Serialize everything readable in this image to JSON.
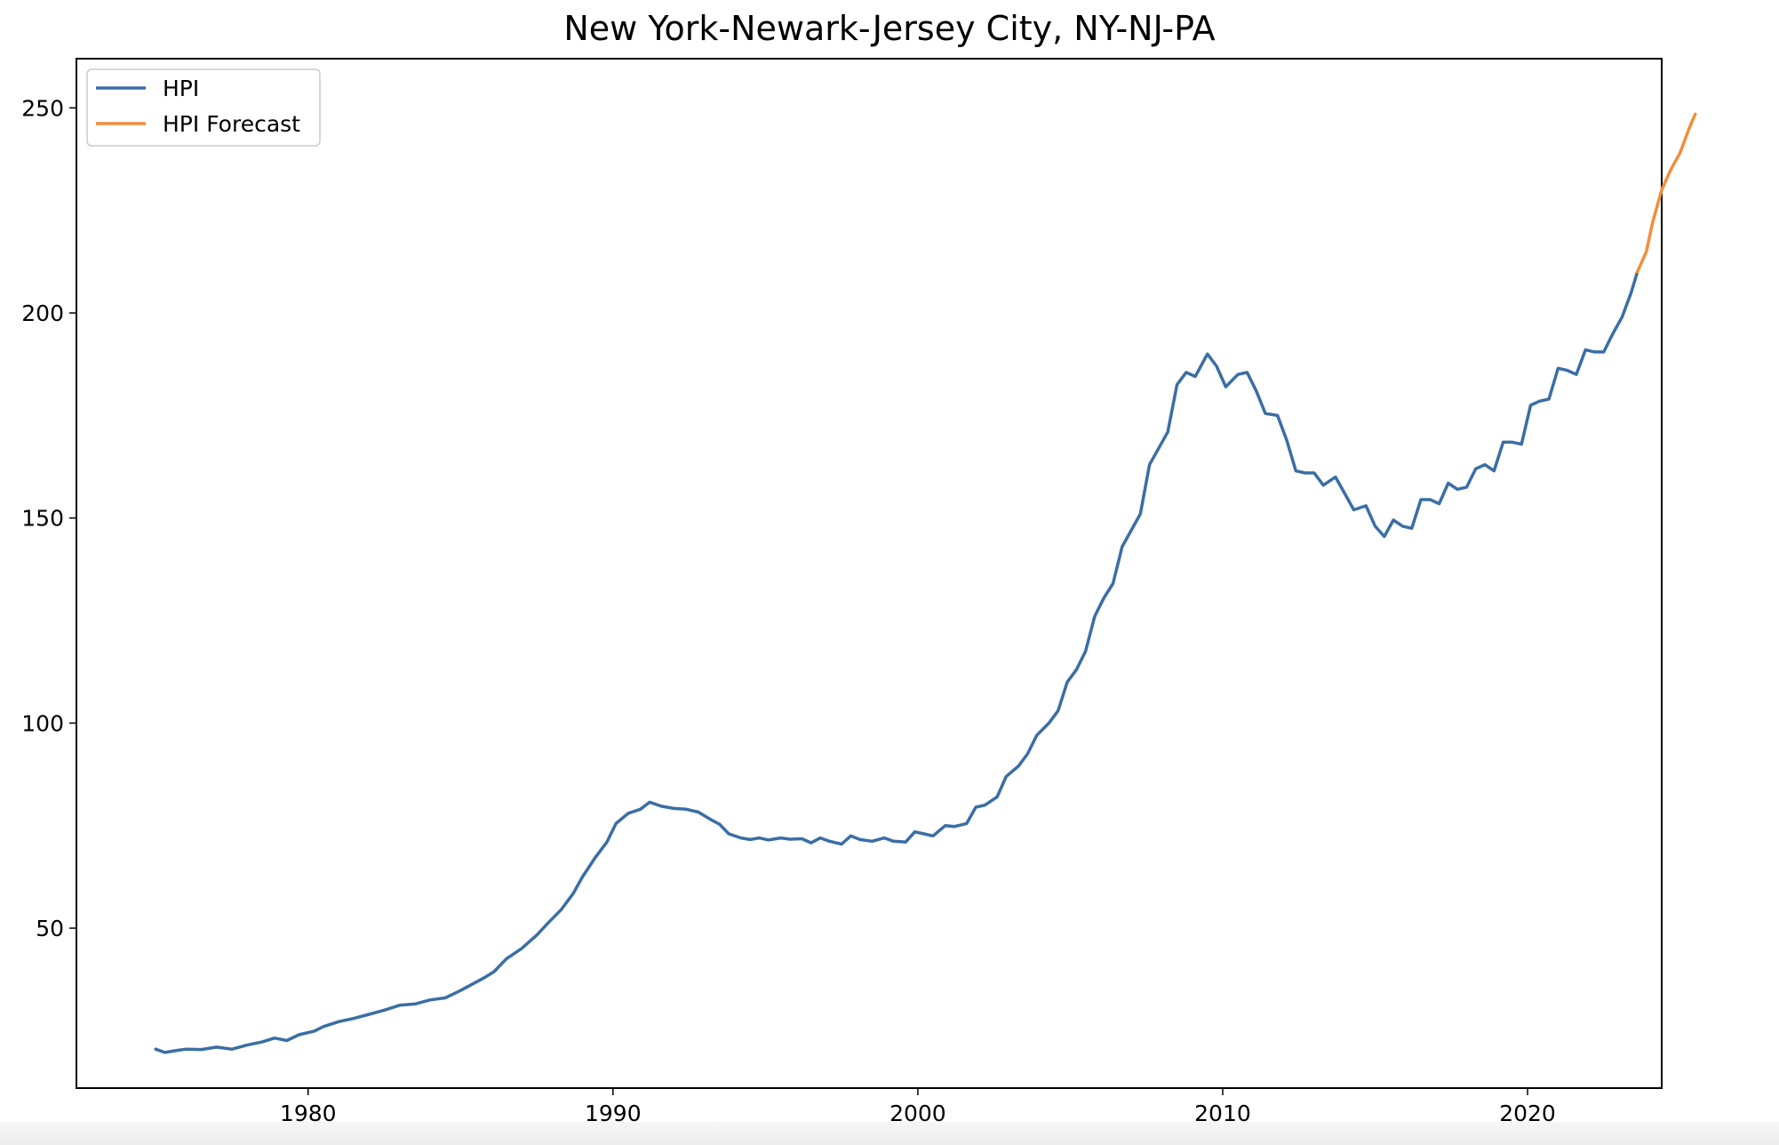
{
  "chart_data": {
    "type": "line",
    "title": "New York-Newark-Jersey City, NY-NJ-PA",
    "xlabel": "",
    "ylabel": "",
    "xlim": [
      1972.4,
      2024.4
    ],
    "ylim": [
      11,
      262
    ],
    "x_ticks": [
      1980,
      1990,
      2000,
      2010,
      2020
    ],
    "y_ticks": [
      50,
      100,
      150,
      200,
      250
    ],
    "grid": false,
    "legend_position": "top-left",
    "series": [
      {
        "name": "HPI",
        "color": "#3a6ea5",
        "points": [
          [
            1975.0,
            20.5
          ],
          [
            1975.3,
            19.7
          ],
          [
            1975.7,
            20.2
          ],
          [
            1976.0,
            20.5
          ],
          [
            1976.5,
            20.4
          ],
          [
            1977.0,
            21.0
          ],
          [
            1977.5,
            20.5
          ],
          [
            1978.0,
            21.5
          ],
          [
            1978.5,
            22.3
          ],
          [
            1978.9,
            23.2
          ],
          [
            1979.3,
            22.6
          ],
          [
            1979.7,
            24.0
          ],
          [
            1980.2,
            24.9
          ],
          [
            1980.5,
            26.0
          ],
          [
            1981.0,
            27.2
          ],
          [
            1981.5,
            28.0
          ],
          [
            1982.0,
            29.0
          ],
          [
            1982.5,
            30.0
          ],
          [
            1983.0,
            31.2
          ],
          [
            1983.5,
            31.5
          ],
          [
            1984.0,
            32.5
          ],
          [
            1984.5,
            33.0
          ],
          [
            1985.0,
            34.8
          ],
          [
            1985.4,
            36.4
          ],
          [
            1985.8,
            38.0
          ],
          [
            1986.1,
            39.4
          ],
          [
            1986.5,
            42.5
          ],
          [
            1987.0,
            45.0
          ],
          [
            1987.5,
            48.3
          ],
          [
            1987.9,
            51.5
          ],
          [
            1988.3,
            54.5
          ],
          [
            1988.7,
            58.5
          ],
          [
            1989.0,
            62.5
          ],
          [
            1989.4,
            67.0
          ],
          [
            1989.8,
            71.0
          ],
          [
            1990.1,
            75.5
          ],
          [
            1990.5,
            78.0
          ],
          [
            1990.9,
            79.0
          ],
          [
            1991.2,
            80.7
          ],
          [
            1991.6,
            79.7
          ],
          [
            1992.0,
            79.2
          ],
          [
            1992.4,
            79.0
          ],
          [
            1992.8,
            78.3
          ],
          [
            1993.2,
            76.5
          ],
          [
            1993.5,
            75.3
          ],
          [
            1993.8,
            73.0
          ],
          [
            1994.2,
            72.0
          ],
          [
            1994.5,
            71.6
          ],
          [
            1994.8,
            72.0
          ],
          [
            1995.1,
            71.5
          ],
          [
            1995.5,
            72.0
          ],
          [
            1995.8,
            71.7
          ],
          [
            1996.2,
            71.8
          ],
          [
            1996.5,
            70.8
          ],
          [
            1996.8,
            72.0
          ],
          [
            1997.1,
            71.2
          ],
          [
            1997.5,
            70.5
          ],
          [
            1997.8,
            72.5
          ],
          [
            1998.1,
            71.6
          ],
          [
            1998.5,
            71.2
          ],
          [
            1998.9,
            72.0
          ],
          [
            1999.2,
            71.2
          ],
          [
            1999.6,
            71.0
          ],
          [
            1999.9,
            73.5
          ],
          [
            2000.2,
            73.0
          ],
          [
            2000.5,
            72.5
          ],
          [
            2000.9,
            75.0
          ],
          [
            2001.2,
            74.8
          ],
          [
            2001.6,
            75.5
          ],
          [
            2001.9,
            79.5
          ],
          [
            2002.2,
            80.0
          ],
          [
            2002.6,
            82.0
          ],
          [
            2002.9,
            87.0
          ],
          [
            2003.3,
            89.5
          ],
          [
            2003.6,
            92.5
          ],
          [
            2003.9,
            97.0
          ],
          [
            2004.3,
            100.0
          ],
          [
            2004.6,
            103.0
          ],
          [
            2004.9,
            110.0
          ],
          [
            2005.2,
            113.0
          ],
          [
            2005.5,
            117.5
          ],
          [
            2005.8,
            126.0
          ],
          [
            2006.1,
            130.5
          ],
          [
            2006.4,
            134.0
          ],
          [
            2006.7,
            143.0
          ],
          [
            2007.0,
            147.0
          ],
          [
            2007.3,
            151.0
          ],
          [
            2007.6,
            163.0
          ],
          [
            2007.9,
            167.0
          ],
          [
            2008.2,
            171.0
          ],
          [
            2008.5,
            182.5
          ],
          [
            2008.8,
            185.5
          ],
          [
            2009.1,
            184.5
          ],
          [
            2009.5,
            190.0
          ],
          [
            2009.8,
            187.0
          ],
          [
            2010.1,
            182.0
          ],
          [
            2010.5,
            185.0
          ],
          [
            2010.8,
            185.5
          ],
          [
            2011.1,
            181.0
          ],
          [
            2011.4,
            175.5
          ],
          [
            2011.8,
            175.0
          ],
          [
            2012.1,
            169.0
          ],
          [
            2012.4,
            161.5
          ],
          [
            2012.7,
            161.0
          ],
          [
            2013.0,
            161.0
          ],
          [
            2013.3,
            158.0
          ],
          [
            2013.7,
            160.0
          ],
          [
            2014.0,
            156.0
          ],
          [
            2014.3,
            152.0
          ],
          [
            2014.7,
            153.0
          ],
          [
            2015.0,
            148.0
          ],
          [
            2015.3,
            145.5
          ],
          [
            2015.6,
            149.5
          ],
          [
            2015.9,
            148.0
          ],
          [
            2016.2,
            147.5
          ],
          [
            2016.5,
            154.5
          ],
          [
            2016.8,
            154.5
          ],
          [
            2017.1,
            153.5
          ],
          [
            2017.4,
            158.5
          ],
          [
            2017.7,
            157.0
          ],
          [
            2018.0,
            157.5
          ],
          [
            2018.3,
            162.0
          ],
          [
            2018.6,
            163.0
          ],
          [
            2018.9,
            161.5
          ],
          [
            2019.2,
            168.5
          ],
          [
            2019.5,
            168.5
          ],
          [
            2019.8,
            168.0
          ],
          [
            2020.1,
            177.5
          ],
          [
            2020.4,
            178.5
          ],
          [
            2020.7,
            179.0
          ],
          [
            2021.0,
            186.5
          ],
          [
            2021.3,
            186.0
          ],
          [
            2021.6,
            185.0
          ],
          [
            2021.9,
            191.0
          ],
          [
            2022.2,
            190.5
          ],
          [
            2022.5,
            190.5
          ],
          [
            2022.8,
            195.0
          ],
          [
            2023.1,
            199.0
          ],
          [
            2023.4,
            205.0
          ],
          [
            2023.6,
            210.0
          ]
        ]
      },
      {
        "name": "HPI Forecast",
        "color": "#f28e3c",
        "points": [
          [
            2023.6,
            210.0
          ],
          [
            2023.9,
            215.0
          ],
          [
            2024.1,
            222.0
          ],
          [
            2024.4,
            230.0
          ],
          [
            2024.7,
            235.0
          ],
          [
            2025.0,
            239.0
          ],
          [
            2025.3,
            245.0
          ],
          [
            2025.5,
            248.5
          ]
        ]
      }
    ]
  }
}
